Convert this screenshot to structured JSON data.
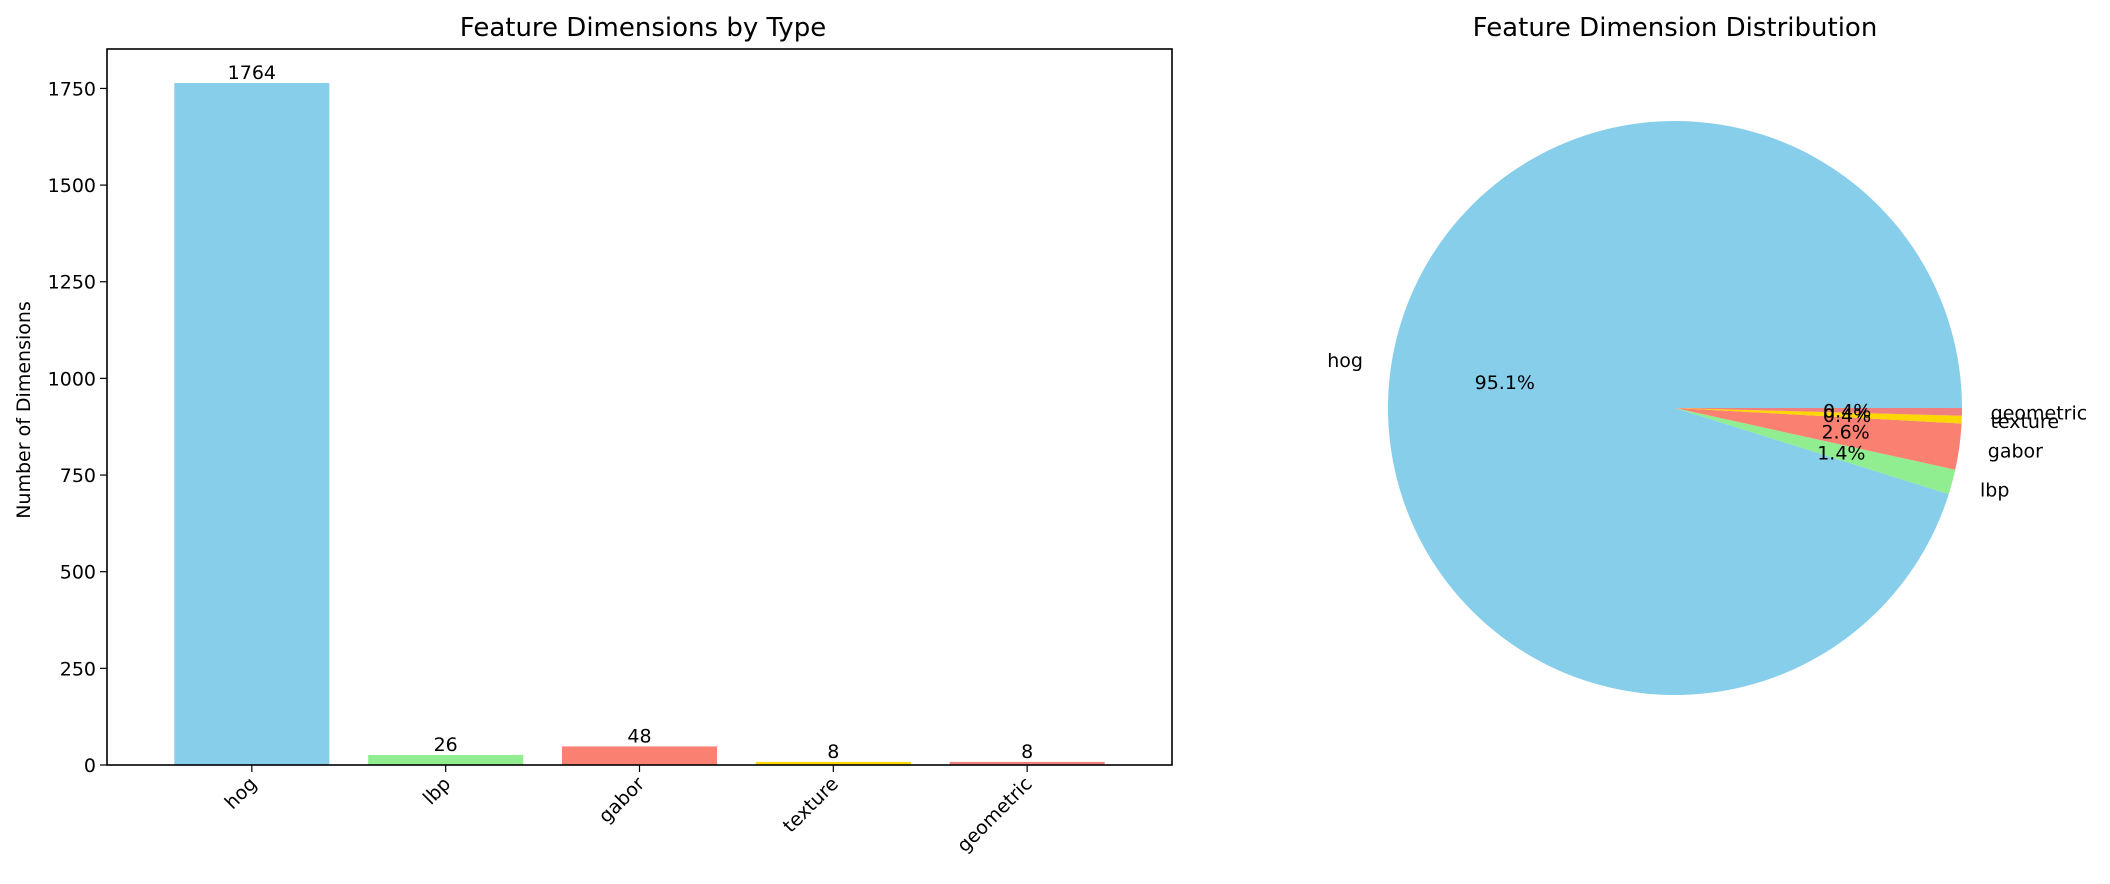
{
  "chart_data": [
    {
      "type": "bar",
      "title": "Feature Dimensions by Type",
      "xlabel": "",
      "ylabel": "Number of Dimensions",
      "categories": [
        "hog",
        "lbp",
        "gabor",
        "texture",
        "geometric"
      ],
      "values": [
        1764,
        26,
        48,
        8,
        8
      ],
      "value_labels": [
        "1764",
        "26",
        "48",
        "8",
        "8"
      ],
      "colors": [
        "#87CEEB",
        "#90EE90",
        "#FA8072",
        "#FFD700",
        "#F08080"
      ],
      "ylim": [
        0,
        1852
      ],
      "yticks": [
        0,
        250,
        500,
        750,
        1000,
        1250,
        1500,
        1750
      ],
      "ytick_labels": [
        "0",
        "250",
        "500",
        "750",
        "1000",
        "1250",
        "1500",
        "1750"
      ],
      "grid": false
    },
    {
      "type": "pie",
      "title": "Feature Dimension Distribution",
      "labels": [
        "hog",
        "lbp",
        "gabor",
        "texture",
        "geometric"
      ],
      "values": [
        1764,
        26,
        48,
        8,
        8
      ],
      "percent_labels": [
        "95.1%",
        "1.4%",
        "2.6%",
        "0.4%",
        "0.4%"
      ],
      "colors": [
        "#87CEEB",
        "#90EE90",
        "#FA8072",
        "#FFD700",
        "#F08080"
      ],
      "start_angle_deg": 0
    }
  ]
}
